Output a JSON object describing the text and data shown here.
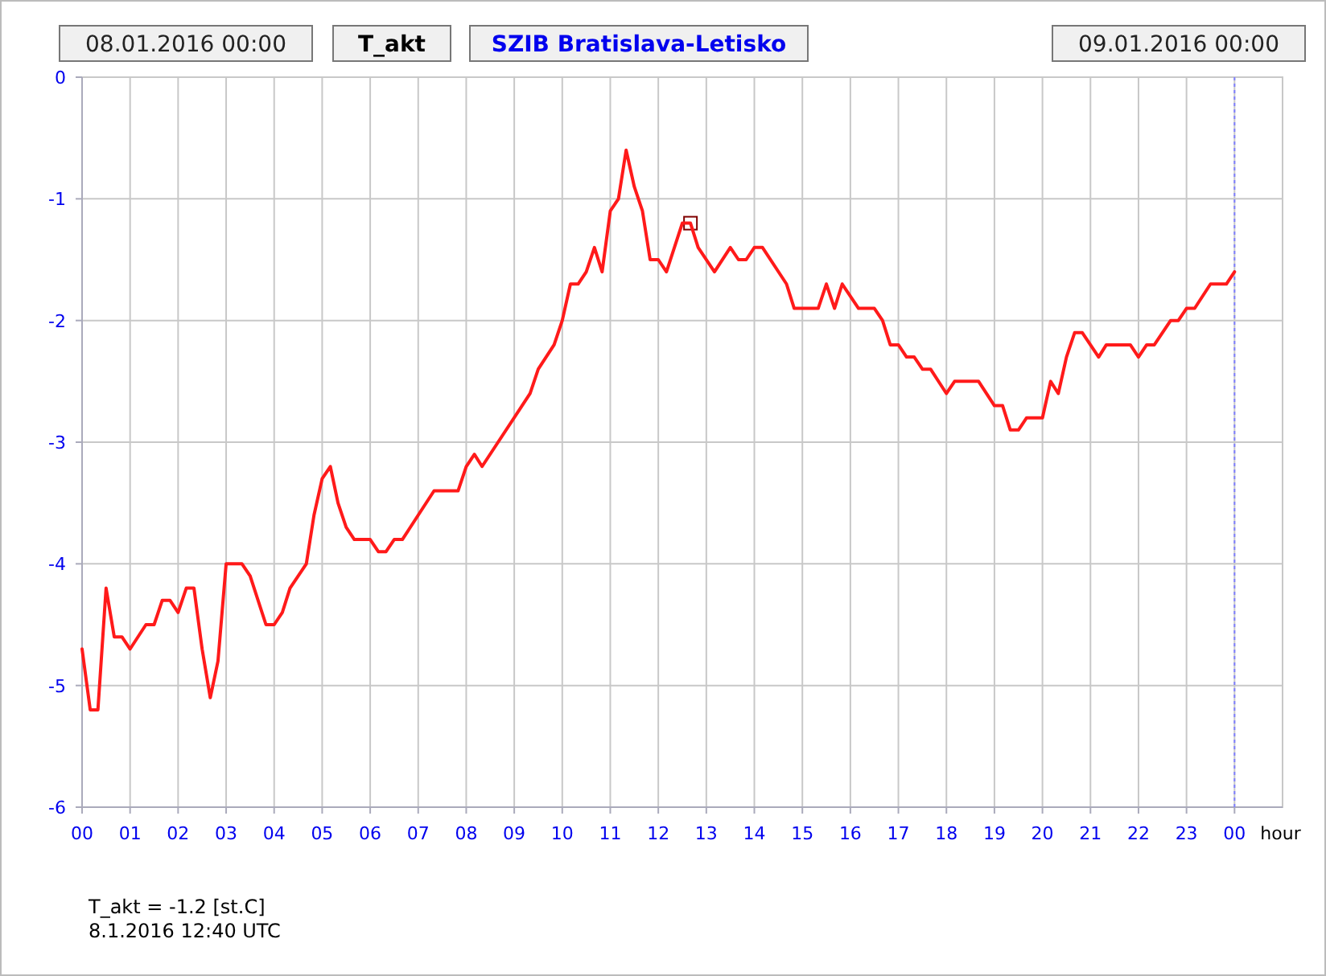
{
  "chart_data": {
    "type": "line",
    "title": "T_akt",
    "subtitle": "SZIB Bratislava-Letisko",
    "xlabel": "hour",
    "annotations": [
      "08.01.2016 00:00",
      "09.01.2016 00:00",
      "T_akt = -1.2 [st.C]",
      "8.1.2016 12:40 UTC"
    ],
    "series": [
      {
        "type": "scatter",
        "color": "#800000",
        "marker": "square",
        "x": [
          12.67
        ],
        "values": [
          -1.2
        ]
      },
      {
        "color": "#ff1a1a",
        "x": [
          0,
          0.17,
          0.33,
          0.5,
          0.67,
          0.83,
          1.0,
          1.33,
          1.5,
          1.67,
          1.83,
          2.0,
          2.17,
          2.33,
          2.5,
          2.67,
          2.83,
          3.0,
          3.33,
          3.5,
          3.83,
          4.0,
          4.17,
          4.33,
          4.67,
          4.83,
          5.0,
          5.17,
          5.33,
          5.5,
          5.67,
          6.0,
          6.17,
          6.33,
          6.5,
          6.67,
          7.33,
          7.83,
          8.0,
          8.17,
          8.33,
          9.33,
          9.5,
          9.83,
          10.0,
          10.17,
          10.33,
          10.5,
          10.67,
          10.83,
          11.0,
          11.17,
          11.33,
          11.5,
          11.67,
          11.83,
          12.0,
          12.17,
          12.5,
          12.67,
          12.83,
          13.17,
          13.5,
          13.67,
          13.83,
          14.0,
          14.17,
          14.67,
          14.83,
          15.33,
          15.5,
          15.67,
          15.83,
          16.17,
          16.5,
          16.67,
          16.83,
          17.0,
          17.17,
          17.33,
          17.5,
          17.67,
          18.0,
          18.17,
          18.67,
          19.0,
          19.17,
          19.33,
          19.5,
          19.67,
          20.0,
          20.17,
          20.33,
          20.5,
          20.67,
          20.83,
          21.17,
          21.33,
          21.83,
          22.0,
          22.17,
          22.33,
          22.67,
          22.83,
          23.0,
          23.17,
          23.5,
          23.83,
          24.0
        ],
        "values": [
          -4.7,
          -5.2,
          -5.2,
          -4.2,
          -4.6,
          -4.6,
          -4.7,
          -4.5,
          -4.5,
          -4.3,
          -4.3,
          -4.4,
          -4.2,
          -4.2,
          -4.7,
          -5.1,
          -4.8,
          -4.0,
          -4.0,
          -4.1,
          -4.5,
          -4.5,
          -4.4,
          -4.2,
          -4.0,
          -3.6,
          -3.3,
          -3.2,
          -3.5,
          -3.7,
          -3.8,
          -3.8,
          -3.9,
          -3.9,
          -3.8,
          -3.8,
          -3.4,
          -3.4,
          -3.2,
          -3.1,
          -3.2,
          -2.6,
          -2.4,
          -2.2,
          -2.0,
          -1.7,
          -1.7,
          -1.6,
          -1.4,
          -1.6,
          -1.1,
          -1.0,
          -0.6,
          -0.9,
          -1.1,
          -1.5,
          -1.5,
          -1.6,
          -1.2,
          -1.2,
          -1.4,
          -1.6,
          -1.4,
          -1.5,
          -1.5,
          -1.4,
          -1.4,
          -1.7,
          -1.9,
          -1.9,
          -1.7,
          -1.9,
          -1.7,
          -1.9,
          -1.9,
          -2.0,
          -2.2,
          -2.2,
          -2.3,
          -2.3,
          -2.4,
          -2.4,
          -2.6,
          -2.5,
          -2.5,
          -2.7,
          -2.7,
          -2.9,
          -2.9,
          -2.8,
          -2.8,
          -2.5,
          -2.6,
          -2.3,
          -2.1,
          -2.1,
          -2.3,
          -2.2,
          -2.2,
          -2.3,
          -2.2,
          -2.2,
          -2.0,
          -2.0,
          -1.9,
          -1.9,
          -1.7,
          -1.7,
          -1.6
        ]
      }
    ],
    "xlim": [
      0,
      25
    ],
    "xticks": [
      {
        "value": 0,
        "label": "00"
      },
      {
        "value": 1,
        "label": "01"
      },
      {
        "value": 2,
        "label": "02"
      },
      {
        "value": 3,
        "label": "03"
      },
      {
        "value": 4,
        "label": "04"
      },
      {
        "value": 5,
        "label": "05"
      },
      {
        "value": 6,
        "label": "06"
      },
      {
        "value": 7,
        "label": "07"
      },
      {
        "value": 8,
        "label": "08"
      },
      {
        "value": 9,
        "label": "09"
      },
      {
        "value": 10,
        "label": "10"
      },
      {
        "value": 11,
        "label": "11"
      },
      {
        "value": 12,
        "label": "12"
      },
      {
        "value": 13,
        "label": "13"
      },
      {
        "value": 14,
        "label": "14"
      },
      {
        "value": 15,
        "label": "15"
      },
      {
        "value": 16,
        "label": "16"
      },
      {
        "value": 17,
        "label": "17"
      },
      {
        "value": 18,
        "label": "18"
      },
      {
        "value": 19,
        "label": "19"
      },
      {
        "value": 20,
        "label": "20"
      },
      {
        "value": 21,
        "label": "21"
      },
      {
        "value": 22,
        "label": "22"
      },
      {
        "value": 23,
        "label": "23"
      },
      {
        "value": 24,
        "label": "00"
      }
    ],
    "ylim": [
      -6,
      0
    ],
    "yticks": [
      -6,
      -5,
      -4,
      -3,
      -2,
      -1,
      0
    ],
    "ref_lines": [
      {
        "axis": "x",
        "value": 24,
        "color": "#8080ff",
        "line_style": "dotted"
      }
    ],
    "grid": true,
    "marker": "none",
    "line_style": "solid"
  }
}
